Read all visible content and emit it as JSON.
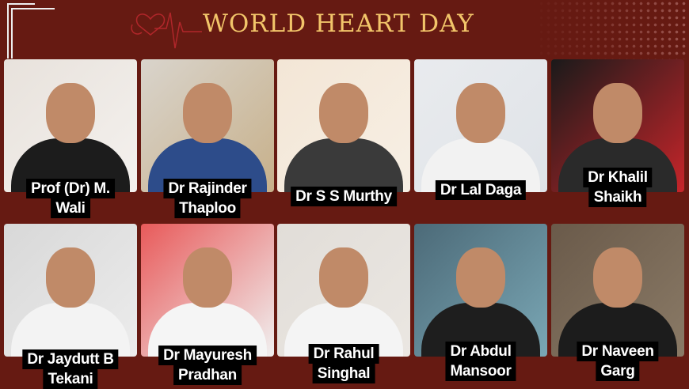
{
  "header": {
    "title": "WORLD HEART DAY",
    "logo": "heart-pulse-stethoscope"
  },
  "colors": {
    "background": "#661a12",
    "title": "#f2c56a",
    "label_bg": "#000000",
    "label_text": "#ffffff"
  },
  "doctors": [
    {
      "lines": [
        "Prof (Dr) M.",
        "Wali"
      ]
    },
    {
      "lines": [
        "Dr Rajinder",
        "Thaploo"
      ]
    },
    {
      "lines": [
        "Dr S S Murthy"
      ]
    },
    {
      "lines": [
        "Dr Lal Daga"
      ]
    },
    {
      "lines": [
        "Dr Khalil",
        "Shaikh"
      ]
    },
    {
      "lines": [
        "Dr Jaydutt B",
        "Tekani"
      ]
    },
    {
      "lines": [
        "Dr Mayuresh",
        "Pradhan"
      ]
    },
    {
      "lines": [
        "Dr Rahul",
        "Singhal"
      ]
    },
    {
      "lines": [
        "Dr Abdul",
        "Mansoor"
      ]
    },
    {
      "lines": [
        "Dr Naveen",
        "Garg"
      ]
    }
  ]
}
